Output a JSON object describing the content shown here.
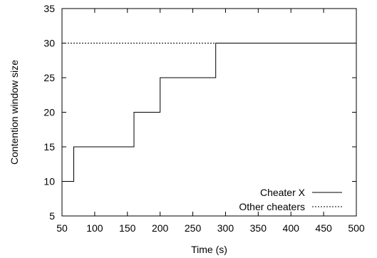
{
  "chart_data": {
    "type": "line",
    "xlabel": "Time (s)",
    "ylabel": "Contention window size",
    "xlim": [
      50,
      500
    ],
    "ylim": [
      5,
      35
    ],
    "xticks": [
      50,
      100,
      150,
      200,
      250,
      300,
      350,
      400,
      450,
      500
    ],
    "yticks": [
      5,
      10,
      15,
      20,
      25,
      30,
      35
    ],
    "grid": false,
    "legend_position": "bottom-right",
    "series": [
      {
        "name": "Cheater X",
        "style": "solid",
        "color": "#000000",
        "step": true,
        "x": [
          50,
          68,
          68,
          160,
          160,
          200,
          200,
          285,
          285,
          500
        ],
        "y": [
          10,
          10,
          15,
          15,
          20,
          20,
          25,
          25,
          30,
          30
        ]
      },
      {
        "name": "Other cheaters",
        "style": "dashed",
        "color": "#000000",
        "step": false,
        "x": [
          50,
          500
        ],
        "y": [
          30,
          30
        ]
      }
    ]
  }
}
